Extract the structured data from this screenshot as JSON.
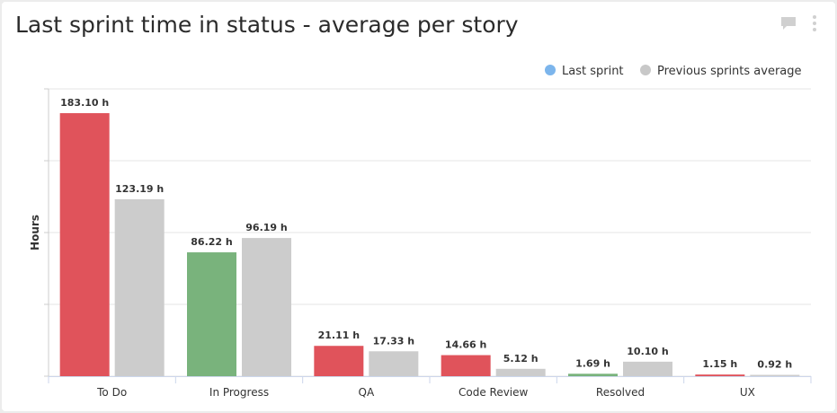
{
  "header": {
    "title": "Last sprint time in status - average per story",
    "comment_icon": "comment-icon",
    "menu_icon": "kebab-menu-icon"
  },
  "chart_data": {
    "type": "bar",
    "title": "Last sprint time in status - average per story",
    "xlabel": "",
    "ylabel": "Hours",
    "ylim": [
      0,
      200
    ],
    "grid": true,
    "legend_position": "top-right",
    "value_suffix": " h",
    "categories": [
      "To Do",
      "In Progress",
      "QA",
      "Code Review",
      "Resolved",
      "UX"
    ],
    "series": [
      {
        "name": "Last sprint",
        "legend_color": "#7cb5ec",
        "values": [
          183.1,
          86.22,
          21.11,
          14.66,
          1.69,
          1.15
        ],
        "colors": [
          "#e0535b",
          "#79b37c",
          "#e0535b",
          "#e0535b",
          "#79b37c",
          "#e0535b"
        ]
      },
      {
        "name": "Previous sprints average",
        "legend_color": "#c8c8c8",
        "values": [
          123.19,
          96.19,
          17.33,
          5.12,
          10.1,
          0.92
        ],
        "colors": [
          "#cccccc",
          "#cccccc",
          "#cccccc",
          "#cccccc",
          "#cccccc",
          "#cccccc"
        ]
      }
    ]
  }
}
